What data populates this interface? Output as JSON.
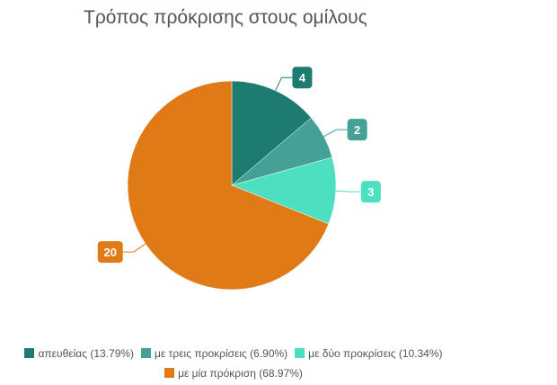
{
  "chart_data": {
    "type": "pie",
    "title": "Τρόπος πρόκρισης στους ομίλους",
    "slices": [
      {
        "label": "απευθείας",
        "value": 4,
        "percent": "13.79%",
        "color": "#1e7b70"
      },
      {
        "label": "με τρεις προκρίσεις",
        "value": 2,
        "percent": "6.90%",
        "color": "#45a095"
      },
      {
        "label": "με δύο προκρίσεις",
        "value": 3,
        "percent": "10.34%",
        "color": "#4de0c0"
      },
      {
        "label": "με μία πρόκριση",
        "value": 20,
        "percent": "68.97%",
        "color": "#e07a16"
      }
    ],
    "legend_position": "bottom",
    "start_angle": "top, clockwise"
  }
}
